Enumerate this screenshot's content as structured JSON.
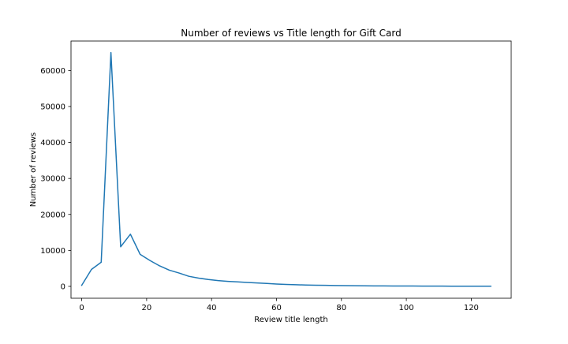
{
  "chart_data": {
    "type": "line",
    "title": "Number of reviews vs Title length for Gift Card",
    "xlabel": "Review title length",
    "ylabel": "Number of reviews",
    "xlim": [
      -3.3,
      132.3
    ],
    "ylim": [
      -3300,
      68200
    ],
    "xticks": [
      0,
      20,
      40,
      60,
      80,
      100,
      120
    ],
    "yticks": [
      0,
      10000,
      20000,
      30000,
      40000,
      50000,
      60000
    ],
    "grid": false,
    "legend": "none",
    "series": [
      {
        "color": "#1f77b4",
        "x": [
          0,
          3,
          6,
          9,
          12,
          15,
          18,
          21,
          24,
          27,
          30,
          33,
          36,
          39,
          42,
          45,
          48,
          51,
          54,
          57,
          60,
          63,
          66,
          69,
          72,
          75,
          78,
          81,
          84,
          87,
          90,
          93,
          96,
          99,
          102,
          105,
          108,
          111,
          114,
          117,
          120,
          123,
          126
        ],
        "y": [
          300,
          4700,
          6700,
          65000,
          11000,
          14500,
          8900,
          7200,
          5700,
          4500,
          3700,
          2800,
          2300,
          1900,
          1600,
          1400,
          1250,
          1100,
          950,
          800,
          650,
          550,
          450,
          380,
          330,
          280,
          230,
          200,
          180,
          160,
          140,
          120,
          110,
          100,
          90,
          80,
          70,
          60,
          55,
          50,
          45,
          40,
          35
        ]
      }
    ]
  }
}
